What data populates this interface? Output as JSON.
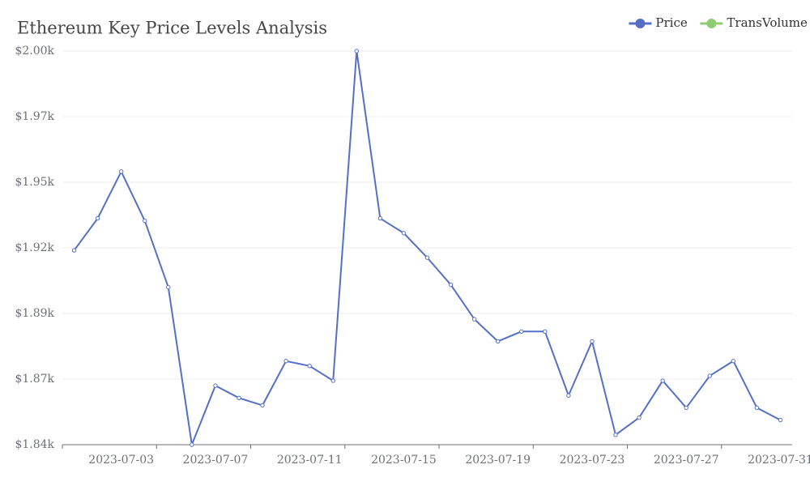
{
  "chart_data": {
    "type": "line",
    "title": "Ethereum Key Price Levels Analysis",
    "categories": [
      null,
      null,
      "2023-07-03",
      null,
      null,
      null,
      "2023-07-07",
      null,
      null,
      null,
      "2023-07-11",
      null,
      null,
      null,
      "2023-07-15",
      null,
      null,
      null,
      "2023-07-19",
      null,
      null,
      null,
      "2023-07-23",
      null,
      null,
      null,
      "2023-07-27",
      null,
      null,
      null,
      "2023-07-31"
    ],
    "series": [
      {
        "name": "Price",
        "color": "#5470c6",
        "values": [
          1919,
          1932,
          1951,
          1931,
          1904,
          1840,
          1864,
          1859,
          1856,
          1874,
          1872,
          1866,
          2000,
          1932,
          1926,
          1916,
          1905,
          1891,
          1882,
          1886,
          1886,
          1860,
          1882,
          1844,
          1851,
          1866,
          1855,
          1868,
          1874,
          1855,
          1850
        ]
      },
      {
        "name": "TransVolume",
        "color": "#91cc75",
        "values": [
          null,
          null,
          null,
          null,
          null,
          null,
          null,
          null,
          null,
          null,
          null,
          null,
          null,
          null,
          null,
          null,
          null,
          null,
          null,
          null,
          null,
          null,
          null,
          null,
          null,
          null,
          null,
          null,
          null,
          null,
          null
        ]
      }
    ],
    "ylim": [
      1840,
      2000
    ],
    "yticks": [
      {
        "value": 1840,
        "label": "$1.84k"
      },
      {
        "value": 1866.67,
        "label": "$1.87k"
      },
      {
        "value": 1893.33,
        "label": "$1.89k"
      },
      {
        "value": 1920,
        "label": "$1.92k"
      },
      {
        "value": 1946.67,
        "label": "$1.95k"
      },
      {
        "value": 1973.33,
        "label": "$1.97k"
      },
      {
        "value": 2000,
        "label": "$2.00k"
      }
    ],
    "grid": true,
    "legend": "top-right"
  }
}
